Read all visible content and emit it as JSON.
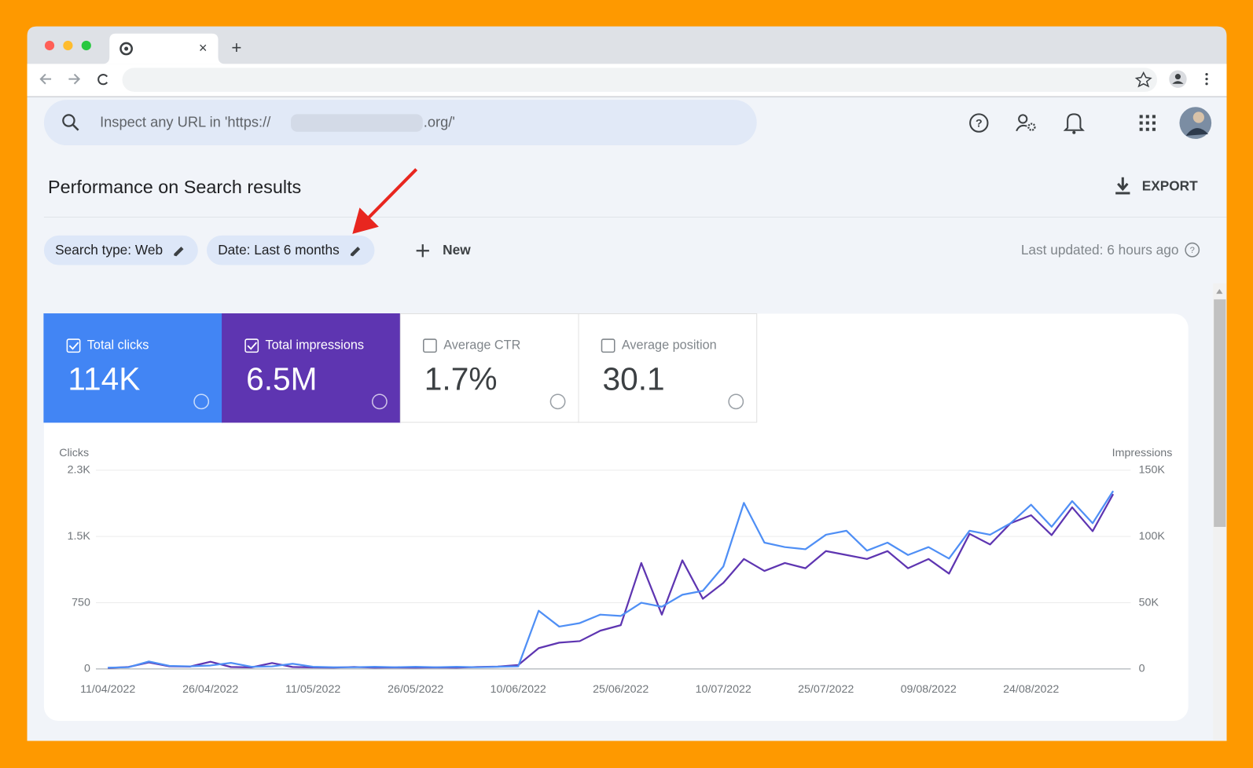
{
  "browser": {
    "tab_close": "×",
    "new_tab": "+"
  },
  "search": {
    "placeholder_start": "Inspect any URL in 'https://",
    "placeholder_end": ".org/'"
  },
  "header": {
    "title": "Performance on Search results",
    "export": "EXPORT"
  },
  "filters": {
    "chips": [
      "Search type: Web",
      "Date: Last 6 months"
    ],
    "new": "New",
    "last_updated": "Last updated: 6 hours ago"
  },
  "metrics": [
    {
      "label": "Total clicks",
      "value": "114K",
      "checked": true,
      "color": "#4285f4"
    },
    {
      "label": "Total impressions",
      "value": "6.5M",
      "checked": true,
      "color": "#5e35b1"
    },
    {
      "label": "Average CTR",
      "value": "1.7%",
      "checked": false,
      "color": "#ffffff"
    },
    {
      "label": "Average position",
      "value": "30.1",
      "checked": false,
      "color": "#ffffff"
    }
  ],
  "chart_data": {
    "type": "line",
    "categories": [
      "11/04/2022",
      null,
      null,
      null,
      null,
      "26/04/2022",
      null,
      null,
      null,
      null,
      "11/05/2022",
      null,
      null,
      null,
      null,
      "26/05/2022",
      null,
      null,
      null,
      null,
      "10/06/2022",
      null,
      null,
      null,
      null,
      "25/06/2022",
      null,
      null,
      null,
      null,
      "10/07/2022",
      null,
      null,
      null,
      null,
      "25/07/2022",
      null,
      null,
      null,
      null,
      "09/08/2022",
      null,
      null,
      null,
      null,
      "24/08/2022",
      null,
      null,
      null,
      null
    ],
    "series": [
      {
        "name": "Clicks",
        "color": "#4f8ff5",
        "axis": "y",
        "values": [
          15,
          20,
          85,
          35,
          30,
          40,
          70,
          25,
          30,
          60,
          25,
          20,
          20,
          25,
          20,
          25,
          20,
          25,
          20,
          25,
          30,
          660,
          480,
          520,
          615,
          600,
          750,
          705,
          840,
          885,
          1160,
          1880,
          1430,
          1380,
          1355,
          1520,
          1565,
          1340,
          1430,
          1290,
          1380,
          1250,
          1565,
          1520,
          1650,
          1860,
          1610,
          1900,
          1650,
          2015
        ]
      },
      {
        "name": "Impressions",
        "color": "#5e35b1",
        "axis": "y2",
        "values": [
          800,
          1500,
          5000,
          2000,
          1800,
          5500,
          1500,
          1200,
          4500,
          1500,
          1200,
          1000,
          1500,
          1000,
          1200,
          1000,
          1200,
          1000,
          1500,
          1800,
          3000,
          15700,
          19900,
          21000,
          28900,
          33100,
          80000,
          41000,
          82000,
          53000,
          65000,
          83000,
          74000,
          80000,
          76000,
          89000,
          86000,
          83000,
          89000,
          76000,
          83000,
          72000,
          102000,
          94000,
          110000,
          116000,
          101000,
          122000,
          104000,
          132000
        ]
      }
    ],
    "ylim": [
      0,
      2250
    ],
    "yticks": [
      0,
      750,
      {
        "value": 1500,
        "label": "1.5K"
      },
      {
        "value": 2250,
        "label": "2.3K"
      }
    ],
    "y2lim": [
      0,
      150000
    ],
    "y2ticks": [
      0,
      {
        "value": 50000,
        "label": "50K"
      },
      {
        "value": 100000,
        "label": "100K"
      },
      {
        "value": 150000,
        "label": "150K"
      }
    ],
    "grid": true
  }
}
